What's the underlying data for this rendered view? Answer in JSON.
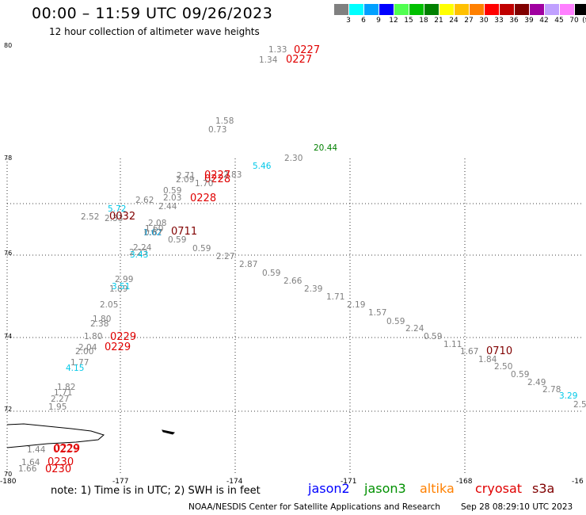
{
  "header": {
    "title": "00:00 – 11:59 UTC 09/26/2023",
    "subtitle": "12 hour collection of altimeter wave heights"
  },
  "legend": {
    "colors": [
      "#808080",
      "#00ffff",
      "#00a0ff",
      "#0000ff",
      "#50ff50",
      "#00c000",
      "#008000",
      "#ffff00",
      "#ffc000",
      "#ff8000",
      "#ff0000",
      "#c00000",
      "#800000",
      "#a000a0",
      "#c0a0ff",
      "#ff80ff",
      "#000000"
    ],
    "labels": [
      "3",
      "6",
      "9",
      "12",
      "15",
      "18",
      "21",
      "24",
      "27",
      "30",
      "33",
      "36",
      "39",
      "42",
      "45",
      "70",
      "(ft)"
    ]
  },
  "map": {
    "lat_labels": [
      "80",
      "78",
      "76",
      "74",
      "72",
      "70"
    ],
    "lon_labels": [
      "-180",
      "-177",
      "-174",
      "-171",
      "-168",
      "-16"
    ],
    "coast_color": "#000000",
    "grid_color": "#000000"
  },
  "observations": [
    {
      "text": "1.33",
      "color": "#808080"
    },
    {
      "text": "0227",
      "color": "#e00000"
    },
    {
      "text": "1.34",
      "color": "#808080"
    },
    {
      "text": "0227",
      "color": "#e00000"
    },
    {
      "text": "1.58",
      "color": "#808080"
    },
    {
      "text": "0.73",
      "color": "#808080"
    },
    {
      "text": "20.44",
      "color": "#008000"
    },
    {
      "text": "5.46",
      "color": "#00c8e8"
    },
    {
      "text": "2.30",
      "color": "#808080"
    },
    {
      "text": "2.71",
      "color": "#808080"
    },
    {
      "text": "2.09",
      "color": "#808080"
    },
    {
      "text": "0227",
      "color": "#e00000"
    },
    {
      "text": "0228",
      "color": "#e00000"
    },
    {
      "text": "2.83",
      "color": "#808080"
    },
    {
      "text": "1.70",
      "color": "#808080"
    },
    {
      "text": "0.59",
      "color": "#808080"
    },
    {
      "text": "2.03",
      "color": "#808080"
    },
    {
      "text": "0228",
      "color": "#e00000"
    },
    {
      "text": "2.62",
      "color": "#808080"
    },
    {
      "text": "2.44",
      "color": "#808080"
    },
    {
      "text": "5.72",
      "color": "#00c8e8"
    },
    {
      "text": "2.52",
      "color": "#808080"
    },
    {
      "text": "2.33",
      "color": "#808080"
    },
    {
      "text": "0032",
      "color": "#800000"
    },
    {
      "text": "2.08",
      "color": "#808080"
    },
    {
      "text": "1.60",
      "color": "#808080"
    },
    {
      "text": "1.62",
      "color": "#00a0e0"
    },
    {
      "text": "0.67",
      "color": "#808080"
    },
    {
      "text": "0711",
      "color": "#800000"
    },
    {
      "text": "0.59",
      "color": "#808080"
    },
    {
      "text": "2.24",
      "color": "#808080"
    },
    {
      "text": "2.23",
      "color": "#808080"
    },
    {
      "text": "3.43",
      "color": "#00c8e8"
    },
    {
      "text": "0.59",
      "color": "#808080"
    },
    {
      "text": "2.27",
      "color": "#808080"
    },
    {
      "text": "2.87",
      "color": "#808080"
    },
    {
      "text": "0.59",
      "color": "#808080"
    },
    {
      "text": "2.66",
      "color": "#808080"
    },
    {
      "text": "2.39",
      "color": "#808080"
    },
    {
      "text": "1.71",
      "color": "#808080"
    },
    {
      "text": "2.19",
      "color": "#808080"
    },
    {
      "text": "1.57",
      "color": "#808080"
    },
    {
      "text": "0.59",
      "color": "#808080"
    },
    {
      "text": "2.24",
      "color": "#808080"
    },
    {
      "text": "0.59",
      "color": "#808080"
    },
    {
      "text": "1.11",
      "color": "#808080"
    },
    {
      "text": "1.67",
      "color": "#808080"
    },
    {
      "text": "0710",
      "color": "#800000"
    },
    {
      "text": "1.84",
      "color": "#808080"
    },
    {
      "text": "2.50",
      "color": "#808080"
    },
    {
      "text": "0.59",
      "color": "#808080"
    },
    {
      "text": "2.49",
      "color": "#808080"
    },
    {
      "text": "2.78",
      "color": "#808080"
    },
    {
      "text": "3.29",
      "color": "#00c8e8"
    },
    {
      "text": "2.5",
      "color": "#808080"
    },
    {
      "text": "2.99",
      "color": "#808080"
    },
    {
      "text": "1.89",
      "color": "#808080"
    },
    {
      "text": "3.51",
      "color": "#00c8e8"
    },
    {
      "text": "2.05",
      "color": "#808080"
    },
    {
      "text": "1.80",
      "color": "#808080"
    },
    {
      "text": "2.38",
      "color": "#808080"
    },
    {
      "text": "1.80",
      "color": "#808080"
    },
    {
      "text": "0229",
      "color": "#e00000"
    },
    {
      "text": "0229",
      "color": "#e00000"
    },
    {
      "text": "2.04",
      "color": "#808080"
    },
    {
      "text": "2.00",
      "color": "#808080"
    },
    {
      "text": "1.77",
      "color": "#808080"
    },
    {
      "text": "4.15",
      "color": "#00c8e8"
    },
    {
      "text": "1.82",
      "color": "#808080"
    },
    {
      "text": "1.71",
      "color": "#808080"
    },
    {
      "text": "2.27",
      "color": "#808080"
    },
    {
      "text": "1.95",
      "color": "#808080"
    },
    {
      "text": "1.44",
      "color": "#808080"
    },
    {
      "text": "0229",
      "color": "#e00000"
    },
    {
      "text": "0229",
      "color": "#e00000"
    },
    {
      "text": "1.64",
      "color": "#808080"
    },
    {
      "text": "0230",
      "color": "#e00000"
    },
    {
      "text": "1.66",
      "color": "#808080"
    },
    {
      "text": "0230",
      "color": "#e00000"
    }
  ],
  "footer": {
    "note": "note:  1) Time is in UTC;  2) SWH is in feet",
    "satellites": [
      {
        "name": "jason2",
        "color": "#0000ff"
      },
      {
        "name": "jason3",
        "color": "#009000"
      },
      {
        "name": "altika",
        "color": "#ff8000"
      },
      {
        "name": "cryosat",
        "color": "#e00000"
      },
      {
        "name": "s3a",
        "color": "#800000"
      }
    ],
    "credit": "NOAA/NESDIS Center for Satellite Applications and Research",
    "timestamp": "Sep 28 08:29:10 UTC 2023"
  }
}
